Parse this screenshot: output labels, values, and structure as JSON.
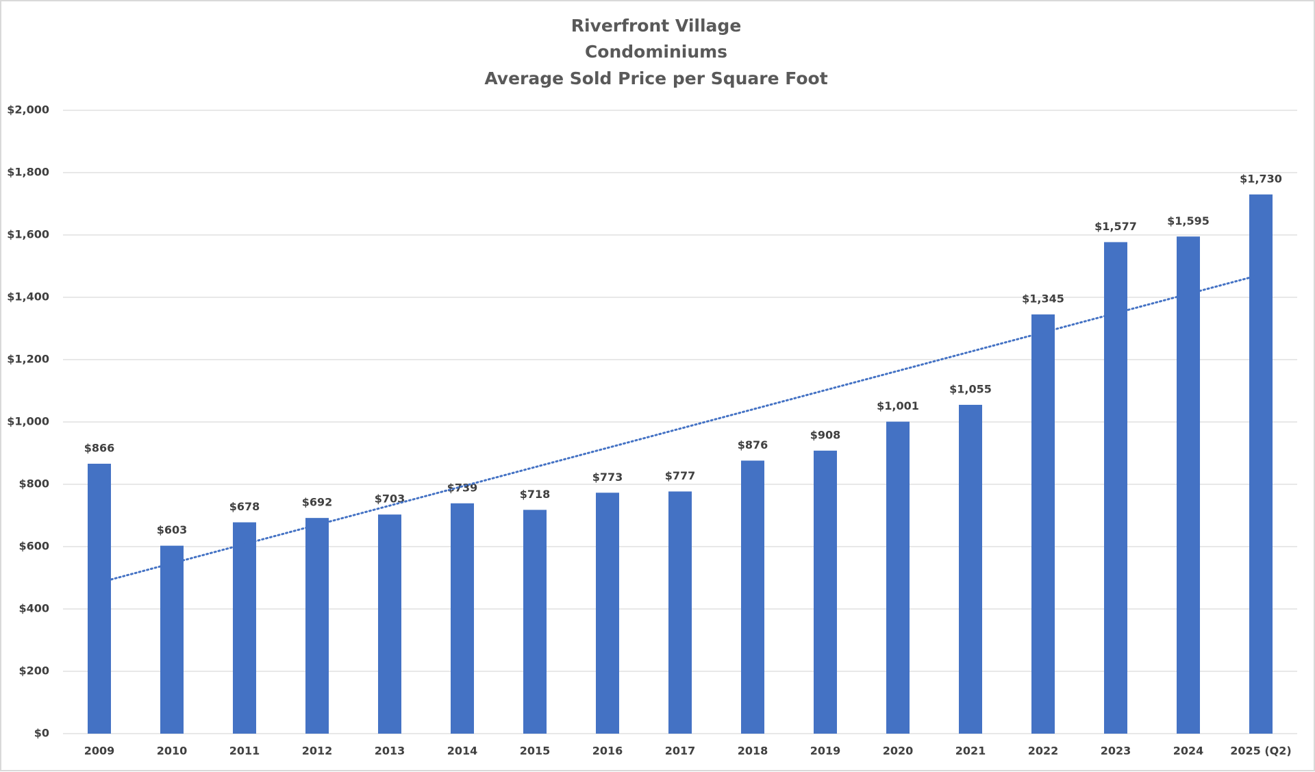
{
  "chart_data": {
    "type": "bar",
    "title": [
      "Riverfront Village",
      "Condominiums",
      "Average Sold Price per Square Foot"
    ],
    "categories": [
      "2009",
      "2010",
      "2011",
      "2012",
      "2013",
      "2014",
      "2015",
      "2016",
      "2017",
      "2018",
      "2019",
      "2020",
      "2021",
      "2022",
      "2023",
      "2024",
      "2025 (Q2)"
    ],
    "values": [
      866,
      603,
      678,
      692,
      703,
      739,
      718,
      773,
      777,
      876,
      908,
      1001,
      1055,
      1345,
      1577,
      1595,
      1730
    ],
    "value_labels": [
      "$866",
      "$603",
      "$678",
      "$692",
      "$703",
      "$739",
      "$718",
      "$773",
      "$777",
      "$876",
      "$908",
      "$1,001",
      "$1,055",
      "$1,345",
      "$1,577",
      "$1,595",
      "$1,730"
    ],
    "color": "#4472c4",
    "ylim": [
      0,
      2000
    ],
    "yticks": [
      {
        "value": 0,
        "label": "$0"
      },
      {
        "value": 200,
        "label": "$200"
      },
      {
        "value": 400,
        "label": "$400"
      },
      {
        "value": 600,
        "label": "$600"
      },
      {
        "value": 800,
        "label": "$800"
      },
      {
        "value": 1000,
        "label": "$1,000"
      },
      {
        "value": 1200,
        "label": "$1,200"
      },
      {
        "value": 1400,
        "label": "$1,400"
      },
      {
        "value": 1600,
        "label": "$1,600"
      },
      {
        "value": 1800,
        "label": "$1,800"
      },
      {
        "value": 2000,
        "label": "$2,000"
      }
    ],
    "grid": true,
    "trendline": "linear"
  }
}
